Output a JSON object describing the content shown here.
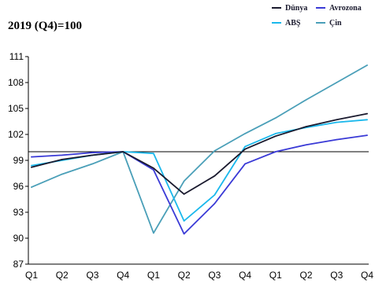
{
  "chart_data": {
    "type": "line",
    "title": "2019 (Q4)=100",
    "xlabel": "",
    "ylabel": "",
    "categories": [
      "Q1",
      "Q2",
      "Q3",
      "Q4",
      "Q1",
      "Q2",
      "Q3",
      "Q4",
      "Q1",
      "Q2",
      "Q3",
      "Q4"
    ],
    "ylim": [
      87,
      111
    ],
    "yticks": [
      87,
      90,
      93,
      96,
      99,
      102,
      105,
      108,
      111
    ],
    "reference_line": 100,
    "grid": false,
    "legend_position": "top-right",
    "series": [
      {
        "name": "Dünya",
        "color": "#1a1a2e",
        "values": [
          98.2,
          99.1,
          99.6,
          100.0,
          98.1,
          95.1,
          97.2,
          100.3,
          101.8,
          102.9,
          103.7,
          104.4
        ]
      },
      {
        "name": "Avrozona",
        "color": "#3a3ad6",
        "values": [
          99.4,
          99.6,
          99.9,
          100.0,
          97.9,
          90.5,
          94.0,
          98.6,
          100.0,
          100.8,
          101.4,
          101.9
        ]
      },
      {
        "name": "ABŞ",
        "color": "#1ab8ec",
        "values": [
          98.4,
          99.0,
          99.6,
          100.0,
          99.8,
          92.0,
          95.0,
          100.6,
          102.1,
          102.8,
          103.4,
          103.7
        ]
      },
      {
        "name": "Çin",
        "color": "#4a9fb8",
        "values": [
          95.9,
          97.4,
          98.6,
          100.0,
          90.6,
          96.6,
          100.1,
          102.1,
          103.9,
          106.0,
          108.0,
          110.0
        ]
      }
    ]
  }
}
